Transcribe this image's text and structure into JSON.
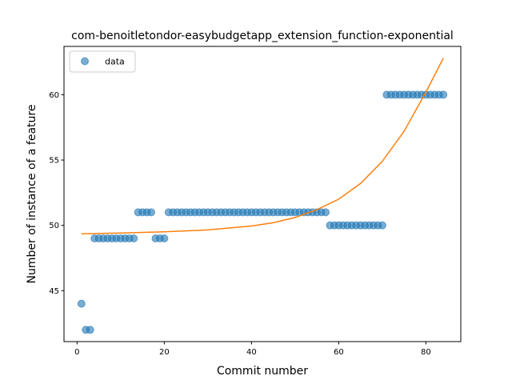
{
  "chart_data": {
    "type": "scatter",
    "title": "com-benoitletondor-easybudgetapp_extension_function-exponential",
    "xlabel": "Commit number",
    "ylabel": "Number of instance of a feature",
    "xlim": [
      -3,
      88
    ],
    "ylim": [
      41.1,
      63.7
    ],
    "xticks": [
      0,
      20,
      40,
      60,
      80
    ],
    "yticks": [
      45,
      50,
      55,
      60
    ],
    "grid": false,
    "legend": {
      "placement": "top-left",
      "entries": [
        "data"
      ]
    },
    "colors": {
      "data": "#1f77b4",
      "fit": "#ff7f0e"
    },
    "series": [
      {
        "name": "data",
        "kind": "scatter",
        "x": [
          1,
          2,
          3,
          4,
          5,
          6,
          7,
          8,
          9,
          10,
          11,
          12,
          13,
          14,
          15,
          16,
          17,
          18,
          19,
          20,
          21,
          22,
          23,
          24,
          25,
          26,
          27,
          28,
          29,
          30,
          31,
          32,
          33,
          34,
          35,
          36,
          37,
          38,
          39,
          40,
          41,
          42,
          43,
          44,
          45,
          46,
          47,
          48,
          49,
          50,
          51,
          52,
          53,
          54,
          55,
          56,
          57,
          58,
          59,
          60,
          61,
          62,
          63,
          64,
          65,
          66,
          67,
          68,
          69,
          70,
          71,
          72,
          73,
          74,
          75,
          76,
          77,
          78,
          79,
          80,
          81,
          82,
          83,
          84
        ],
        "y": [
          44,
          42,
          42,
          49,
          49,
          49,
          49,
          49,
          49,
          49,
          49,
          49,
          49,
          51,
          51,
          51,
          51,
          49,
          49,
          49,
          51,
          51,
          51,
          51,
          51,
          51,
          51,
          51,
          51,
          51,
          51,
          51,
          51,
          51,
          51,
          51,
          51,
          51,
          51,
          51,
          51,
          51,
          51,
          51,
          51,
          51,
          51,
          51,
          51,
          51,
          51,
          51,
          51,
          51,
          51,
          51,
          51,
          50,
          50,
          50,
          50,
          50,
          50,
          50,
          50,
          50,
          50,
          50,
          50,
          50,
          60,
          60,
          60,
          60,
          60,
          60,
          60,
          60,
          60,
          60,
          60,
          60,
          60,
          60
        ]
      },
      {
        "kind": "line",
        "x": [
          1,
          10,
          20,
          30,
          40,
          45,
          50,
          55,
          60,
          65,
          70,
          75,
          80,
          84
        ],
        "y": [
          49.35,
          49.42,
          49.5,
          49.65,
          49.95,
          50.2,
          50.6,
          51.2,
          52.0,
          53.2,
          54.9,
          57.2,
          60.2,
          62.8
        ]
      }
    ]
  }
}
